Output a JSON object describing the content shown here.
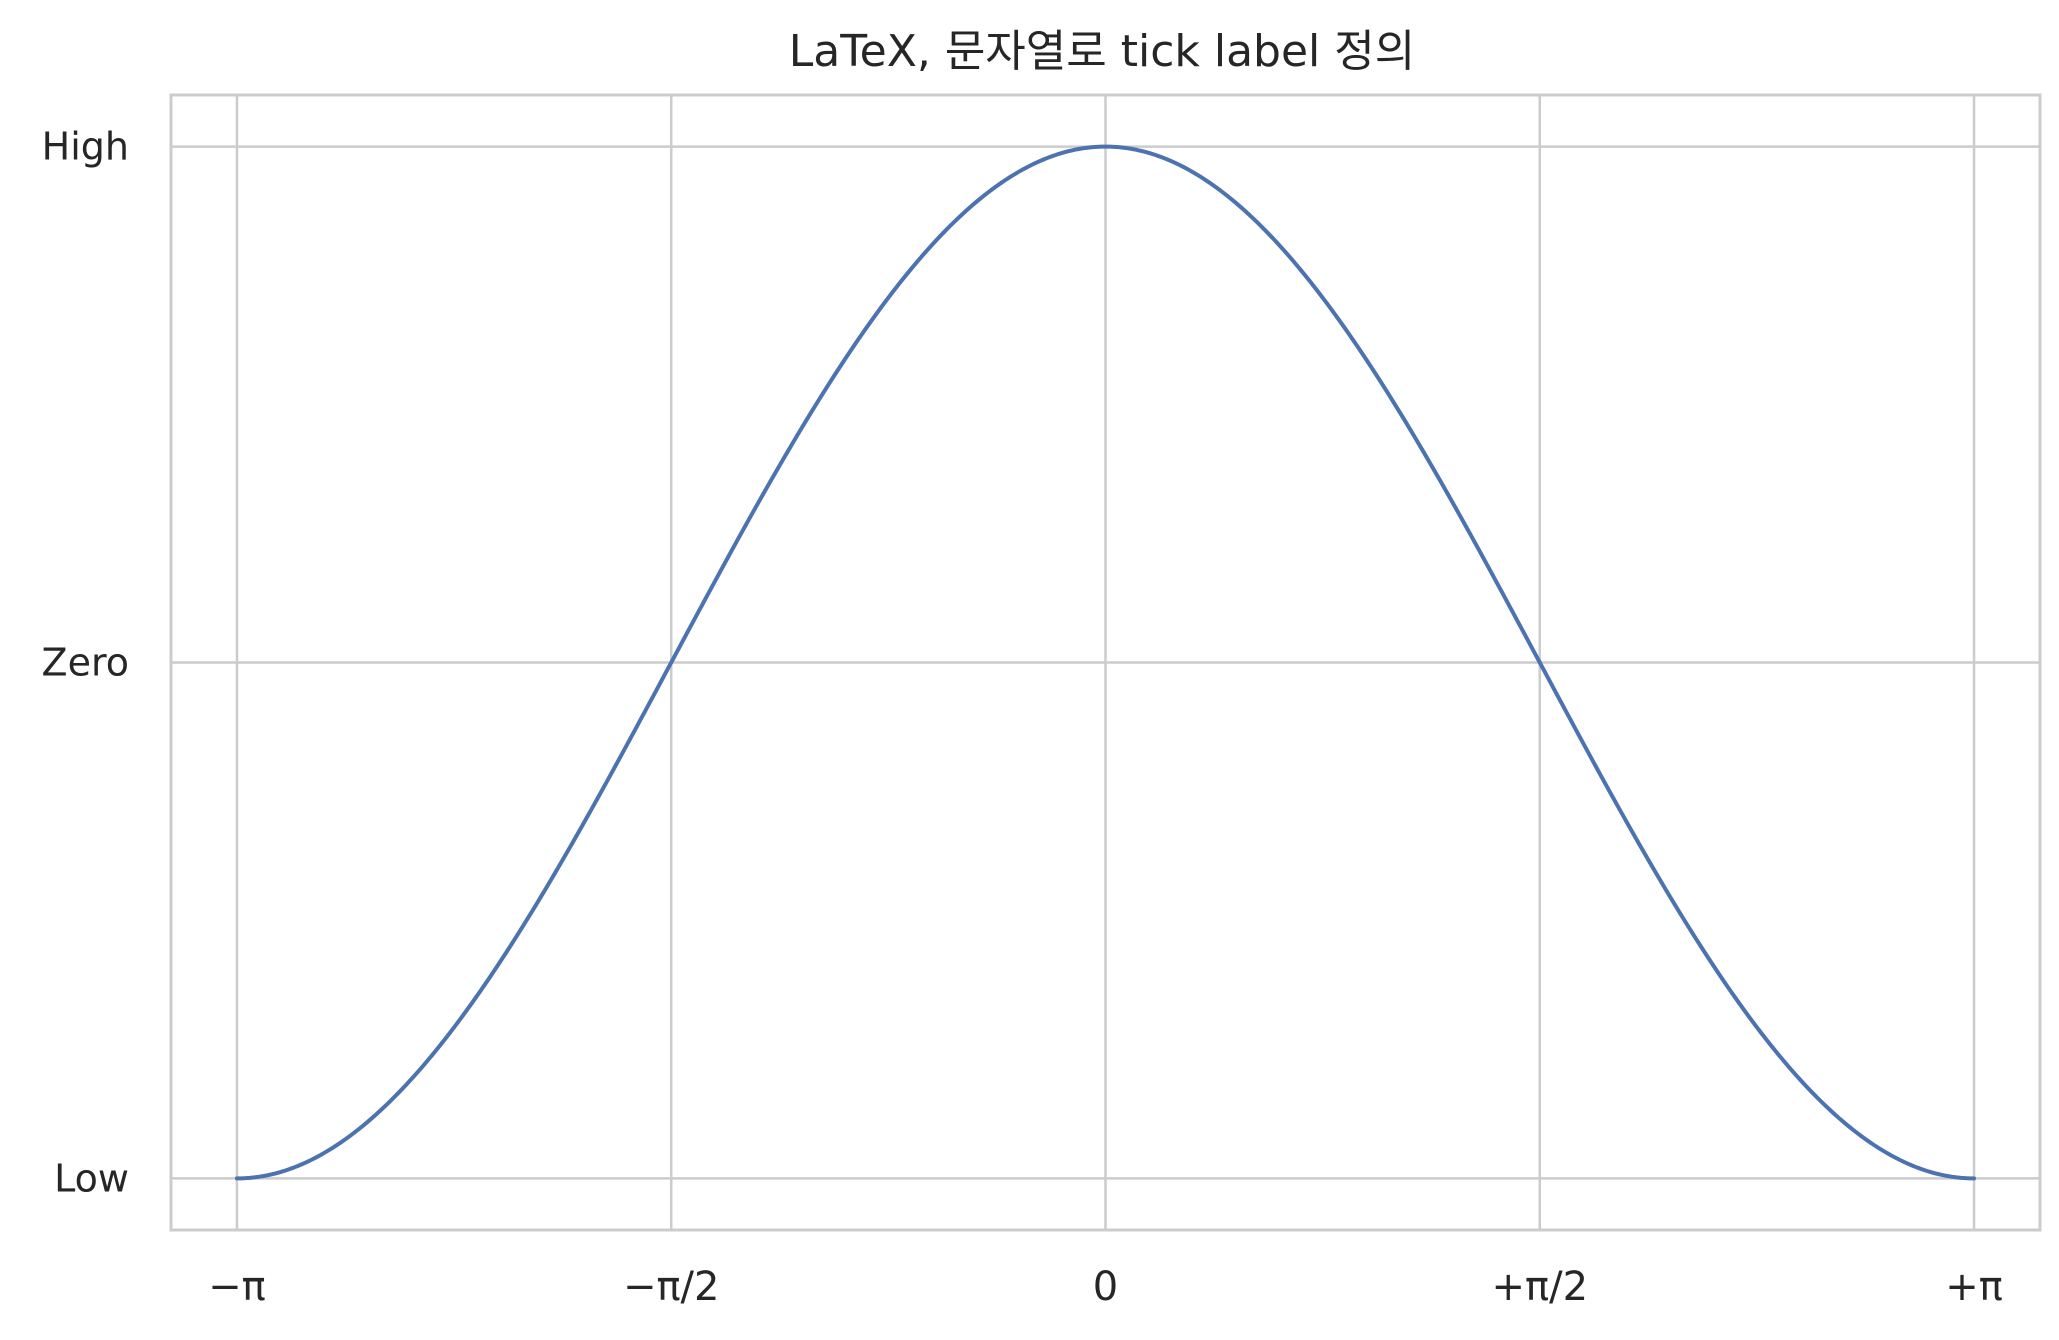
{
  "chart_data": {
    "type": "line",
    "title": "LaTeX, 문자열로 tick label 정의",
    "xlabel": "",
    "ylabel": "",
    "xlim": [
      -3.3802,
      3.3802
    ],
    "ylim": [
      -1.1,
      1.1
    ],
    "grid": true,
    "x_ticks": [
      {
        "value": -3.14159,
        "label": "−π"
      },
      {
        "value": -1.5708,
        "label": "−π/2"
      },
      {
        "value": 0,
        "label": "0"
      },
      {
        "value": 1.5708,
        "label": "+π/2"
      },
      {
        "value": 3.14159,
        "label": "+π"
      }
    ],
    "y_ticks": [
      {
        "value": -1,
        "label": "Low"
      },
      {
        "value": 0,
        "label": "Zero"
      },
      {
        "value": 1,
        "label": "High"
      }
    ],
    "series": [
      {
        "function": "cos(x)",
        "x_range": [
          -3.14159,
          3.14159
        ],
        "color": "#4c72b0",
        "x": [
          -3.14159,
          -2.35619,
          -1.5708,
          -0.7854,
          0,
          0.7854,
          1.5708,
          2.35619,
          3.14159
        ],
        "y": [
          -1,
          -0.7071,
          0,
          0.7071,
          1,
          0.7071,
          0,
          -0.7071,
          -1
        ]
      }
    ],
    "grid_color": "#cccccc",
    "spine_color": "#cccccc"
  }
}
